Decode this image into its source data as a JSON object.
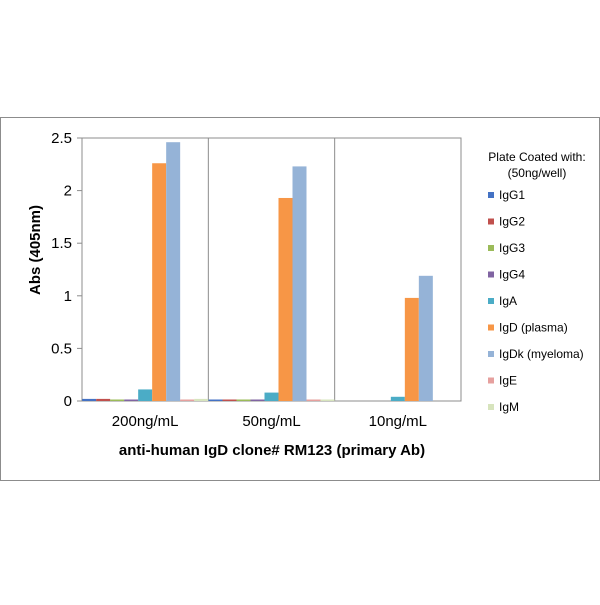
{
  "chart_data": {
    "type": "bar",
    "title": "",
    "xlabel": "anti-human IgD clone# RM123 (primary Ab)",
    "ylabel": "Abs (405nm)",
    "ylim": [
      0,
      2.5
    ],
    "yticks": [
      "0",
      "0.5",
      "1",
      "1.5",
      "2",
      "2.5"
    ],
    "categories": [
      "200ng/mL",
      "50ng/mL",
      "10ng/mL"
    ],
    "legend_title": [
      "Plate Coated with:",
      "(50ng/well)"
    ],
    "legend_position": "right",
    "grid": false,
    "series": [
      {
        "name": "IgG1",
        "color": "#4472c4",
        "values": [
          0.02,
          0.01,
          0.0
        ]
      },
      {
        "name": "IgG2",
        "color": "#c0504d",
        "values": [
          0.02,
          0.01,
          0.0
        ]
      },
      {
        "name": "IgG3",
        "color": "#9bbb59",
        "values": [
          0.01,
          0.01,
          0.0
        ]
      },
      {
        "name": "IgG4",
        "color": "#8064a2",
        "values": [
          0.01,
          0.01,
          0.0
        ]
      },
      {
        "name": "IgA",
        "color": "#4bacc6",
        "values": [
          0.11,
          0.08,
          0.04
        ]
      },
      {
        "name": "IgD (plasma)",
        "color": "#f79646",
        "values": [
          2.26,
          1.93,
          0.98
        ]
      },
      {
        "name": "IgDk (myeloma)",
        "color": "#95b3d7",
        "values": [
          2.46,
          2.23,
          1.19
        ]
      },
      {
        "name": "IgE",
        "color": "#e6a09e",
        "values": [
          0.01,
          0.01,
          0.0
        ]
      },
      {
        "name": "IgM",
        "color": "#d7e4bd",
        "values": [
          0.02,
          0.01,
          0.0
        ]
      }
    ]
  }
}
